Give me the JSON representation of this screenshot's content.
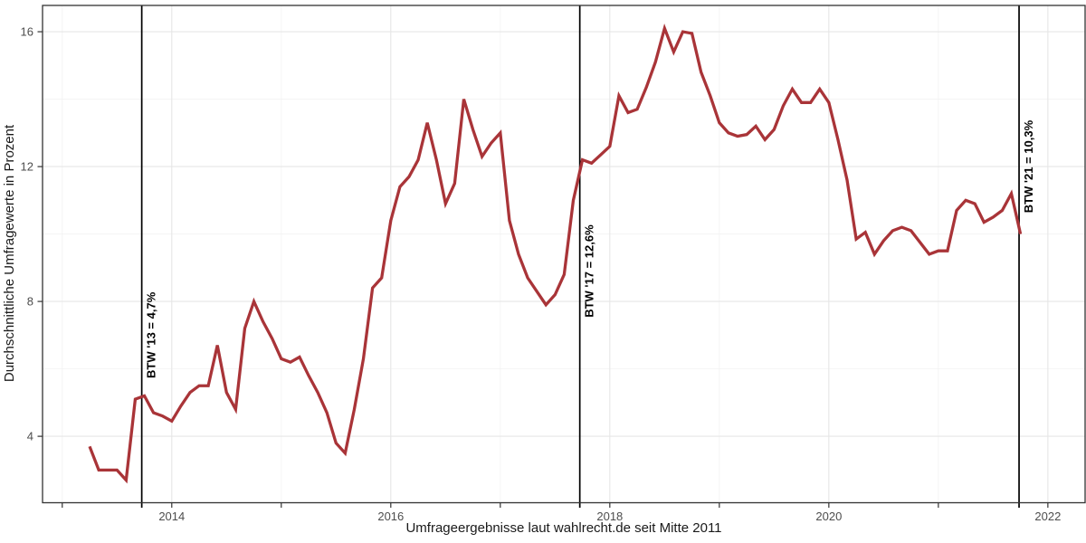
{
  "chart_data": {
    "type": "line",
    "title": "",
    "xlabel": "Umfrageergebnisse laut wahlrecht.de seit Mitte 2011",
    "ylabel": "Durchschnittliche Umfragewerte in Prozent",
    "series_name": "Durchschnittliche Umfragewerte",
    "frequency": "monthly",
    "series_start_month": "2013-04",
    "values": [
      3.7,
      3.0,
      3.0,
      3.0,
      2.7,
      5.1,
      5.2,
      4.7,
      4.6,
      4.45,
      4.9,
      5.3,
      5.5,
      5.5,
      6.7,
      5.3,
      4.8,
      7.2,
      8.0,
      7.4,
      6.9,
      6.3,
      6.2,
      6.35,
      5.8,
      5.3,
      4.7,
      3.8,
      3.5,
      4.8,
      6.3,
      8.4,
      8.7,
      10.4,
      11.4,
      11.7,
      12.2,
      13.3,
      12.2,
      10.9,
      11.5,
      14.0,
      13.1,
      12.3,
      12.7,
      13.0,
      10.4,
      9.4,
      8.7,
      8.3,
      7.9,
      8.2,
      8.8,
      11.0,
      12.2,
      12.1,
      12.35,
      12.6,
      14.1,
      13.6,
      13.7,
      14.35,
      15.1,
      16.1,
      15.4,
      16.0,
      15.95,
      14.8,
      14.1,
      13.3,
      13.0,
      12.9,
      12.95,
      13.2,
      12.8,
      13.1,
      13.8,
      14.3,
      13.9,
      13.9,
      14.3,
      13.9,
      12.8,
      11.6,
      9.85,
      10.05,
      9.4,
      9.8,
      10.1,
      10.2,
      10.1,
      9.75,
      9.4,
      9.5,
      9.5,
      10.7,
      11.0,
      10.9,
      10.35,
      10.5,
      10.7,
      11.2,
      10.0
    ],
    "x_range": [
      2012.82,
      2022.34
    ],
    "y_range": [
      2.03,
      16.78
    ],
    "x_axis": {
      "tick_years": [
        2013,
        2014,
        2015,
        2016,
        2017,
        2018,
        2019,
        2020,
        2021,
        2022
      ],
      "labeled_years": [
        "2014",
        "2016",
        "2018",
        "2020",
        "2022"
      ],
      "major_grid_years": [
        2014,
        2016,
        2018,
        2020,
        2022
      ],
      "minor_grid_years": [
        2013,
        2015,
        2017,
        2019,
        2021
      ]
    },
    "y_axis": {
      "labeled_values": [
        "4",
        "8",
        "12",
        "16"
      ],
      "major_grid_values": [
        4,
        8,
        12,
        16
      ],
      "minor_grid_values": [
        6,
        10,
        14
      ]
    },
    "elections": [
      {
        "label": "BTW '13 = 4,7%",
        "result": 4.7,
        "x": 2013.726,
        "label_y": 7.0
      },
      {
        "label": "BTW '17 = 12,6%",
        "result": 12.6,
        "x": 2017.726,
        "label_y": 8.9
      },
      {
        "label": "BTW '21 = 10,3%",
        "result": 10.3,
        "x": 2021.737,
        "label_y": 12.0
      }
    ],
    "grid": true,
    "legend": "none",
    "colors": {
      "line": "#A93438",
      "election_line": "#000000",
      "grid_major": "#E6E6E6",
      "grid_minor": "#F2F2F2",
      "axis_text": "#4D4D4D",
      "axis_title": "#1A1A1A",
      "panel_border": "#333333",
      "background": "#FFFFFF"
    }
  }
}
